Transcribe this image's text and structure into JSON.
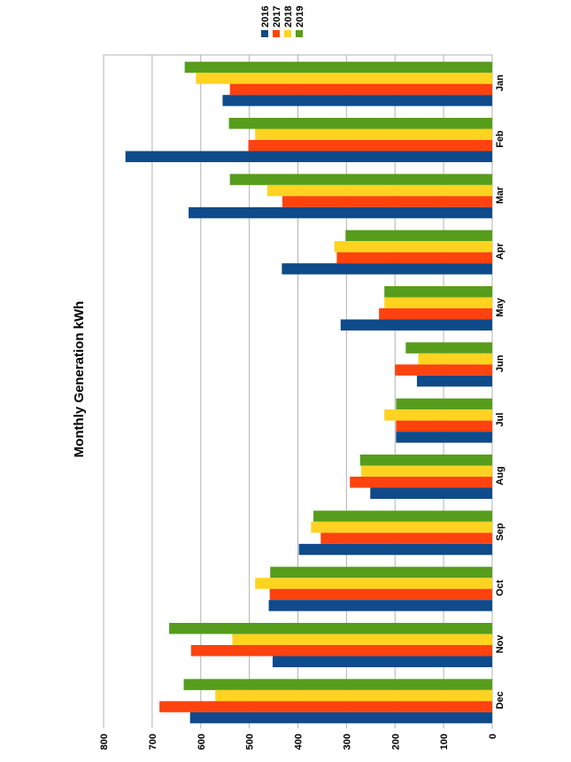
{
  "chart_data": {
    "type": "bar",
    "orientation": "rotated 90 degrees clockwise (value axis along bottom, categories along right side)",
    "title": "Monthly Generation kWh",
    "categories": [
      "Jan",
      "Feb",
      "Mar",
      "Apr",
      "May",
      "Jun",
      "Jul",
      "Aug",
      "Sep",
      "Oct",
      "Nov",
      "Dec"
    ],
    "series": [
      {
        "name": "2016",
        "color": "#0f4a8a",
        "values": [
          555,
          755,
          625,
          433,
          312,
          155,
          198,
          251,
          398,
          460,
          452,
          622
        ]
      },
      {
        "name": "2017",
        "color": "#ff420e",
        "values": [
          540,
          502,
          432,
          320,
          233,
          200,
          198,
          293,
          353,
          458,
          620,
          685
        ]
      },
      {
        "name": "2018",
        "color": "#ffd320",
        "values": [
          610,
          488,
          463,
          325,
          222,
          152,
          222,
          270,
          373,
          488,
          535,
          570
        ]
      },
      {
        "name": "2019",
        "color": "#579d1c",
        "values": [
          633,
          542,
          540,
          302,
          222,
          178,
          198,
          272,
          368,
          457,
          665,
          635
        ]
      }
    ],
    "ylim": [
      0,
      800
    ],
    "ticks": [
      "0",
      "100",
      "200",
      "300",
      "400",
      "500",
      "600",
      "700",
      "800"
    ],
    "grid": true,
    "legend": "top"
  }
}
